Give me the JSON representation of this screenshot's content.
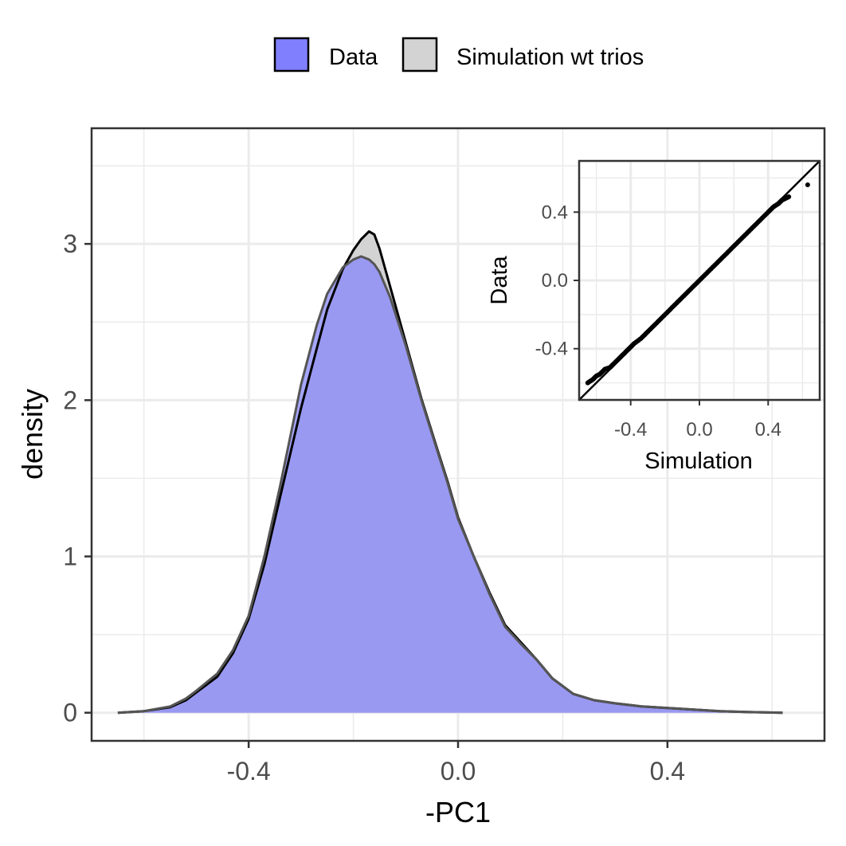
{
  "legend": {
    "items": [
      {
        "label": "Data",
        "fill": "#8080FF"
      },
      {
        "label": "Simulation wt trios",
        "fill": "#D3D3D3"
      }
    ]
  },
  "chart_data": [
    {
      "type": "area",
      "title": "",
      "xlabel": "-PC1",
      "ylabel": "density",
      "xlim": [
        -0.7,
        0.7
      ],
      "ylim": [
        -0.18,
        3.74
      ],
      "xticks": [
        -0.4,
        0.0,
        0.4
      ],
      "xtick_labels": [
        "-0.4",
        "0.0",
        "0.4"
      ],
      "yticks": [
        0,
        1,
        2,
        3
      ],
      "ytick_labels": [
        "0",
        "1",
        "2",
        "3"
      ],
      "grid": true,
      "legend_position": "top",
      "x": [
        -0.65,
        -0.6,
        -0.55,
        -0.52,
        -0.5,
        -0.46,
        -0.43,
        -0.4,
        -0.37,
        -0.34,
        -0.3,
        -0.27,
        -0.25,
        -0.22,
        -0.2,
        -0.185,
        -0.17,
        -0.16,
        -0.15,
        -0.13,
        -0.1,
        -0.07,
        -0.04,
        -0.02,
        0.0,
        0.03,
        0.06,
        0.09,
        0.12,
        0.15,
        0.18,
        0.22,
        0.26,
        0.3,
        0.35,
        0.4,
        0.45,
        0.5,
        0.55,
        0.62
      ],
      "series": [
        {
          "name": "Data",
          "color": "#8080FF",
          "values": [
            0.0,
            0.01,
            0.04,
            0.09,
            0.14,
            0.25,
            0.4,
            0.62,
            1.0,
            1.45,
            2.1,
            2.48,
            2.68,
            2.85,
            2.9,
            2.92,
            2.9,
            2.87,
            2.82,
            2.66,
            2.35,
            2.0,
            1.68,
            1.47,
            1.24,
            1.0,
            0.76,
            0.55,
            0.44,
            0.34,
            0.22,
            0.12,
            0.08,
            0.06,
            0.04,
            0.03,
            0.02,
            0.01,
            0.005,
            0.0
          ]
        },
        {
          "name": "Simulation wt trios",
          "color": "#D3D3D3",
          "values": [
            0.0,
            0.01,
            0.035,
            0.08,
            0.13,
            0.23,
            0.38,
            0.6,
            0.95,
            1.38,
            1.95,
            2.33,
            2.58,
            2.84,
            2.96,
            3.03,
            3.08,
            3.06,
            2.97,
            2.73,
            2.37,
            2.01,
            1.69,
            1.48,
            1.25,
            1.0,
            0.77,
            0.56,
            0.45,
            0.34,
            0.22,
            0.12,
            0.08,
            0.06,
            0.04,
            0.03,
            0.02,
            0.01,
            0.005,
            0.0
          ]
        }
      ]
    },
    {
      "type": "scatter",
      "title": "",
      "xlabel": "Simulation",
      "ylabel": "Data",
      "xlim": [
        -0.7,
        0.7
      ],
      "ylim": [
        -0.7,
        0.7
      ],
      "xticks": [
        -0.4,
        0.0,
        0.4
      ],
      "xtick_labels": [
        "-0.4",
        "0.0",
        "0.4"
      ],
      "yticks": [
        -0.4,
        0.0,
        0.4
      ],
      "ytick_labels": [
        "-0.4",
        "0.0",
        "0.4"
      ],
      "grid": true,
      "position": "inset top-right",
      "reference_line": "y = x",
      "x": [
        -0.65,
        -0.62,
        -0.6,
        -0.58,
        -0.55,
        -0.52,
        -0.5,
        -0.47,
        -0.44,
        -0.41,
        -0.38,
        -0.34,
        -0.3,
        -0.25,
        -0.2,
        -0.15,
        -0.1,
        -0.05,
        0.0,
        0.05,
        0.1,
        0.15,
        0.2,
        0.25,
        0.3,
        0.35,
        0.4,
        0.43,
        0.46,
        0.48,
        0.5,
        0.52,
        0.63
      ],
      "y": [
        -0.6,
        -0.58,
        -0.56,
        -0.55,
        -0.52,
        -0.51,
        -0.49,
        -0.46,
        -0.43,
        -0.4,
        -0.37,
        -0.34,
        -0.3,
        -0.25,
        -0.2,
        -0.15,
        -0.1,
        -0.05,
        0.0,
        0.05,
        0.1,
        0.15,
        0.2,
        0.25,
        0.3,
        0.35,
        0.4,
        0.43,
        0.45,
        0.47,
        0.48,
        0.49,
        0.56
      ]
    }
  ]
}
